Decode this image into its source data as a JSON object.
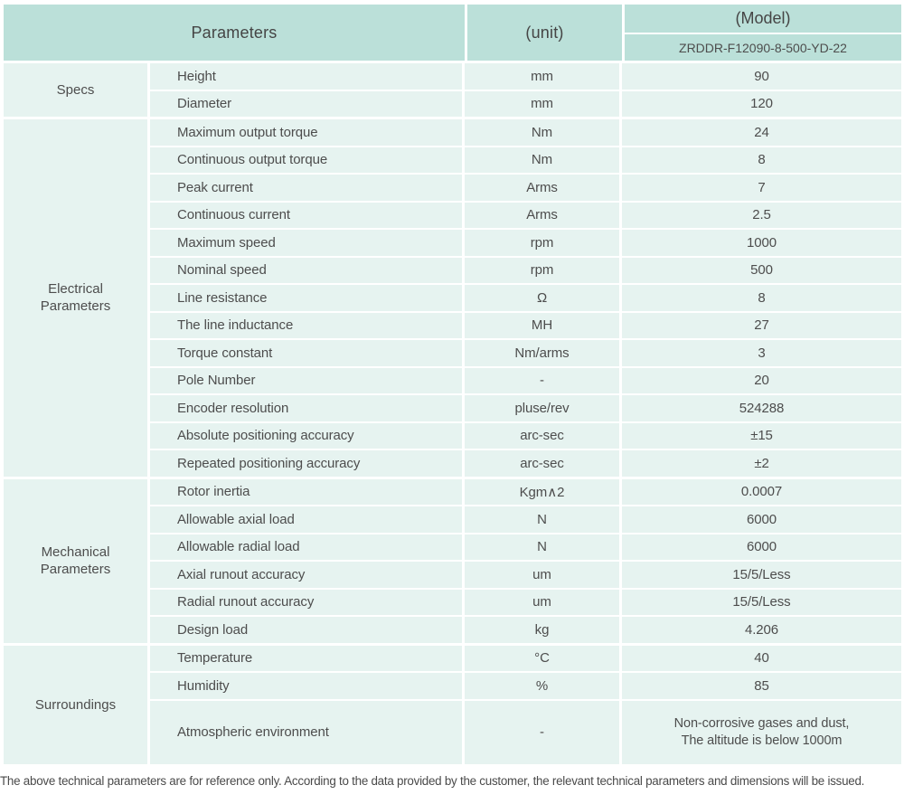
{
  "header": {
    "parameters_label": "Parameters",
    "unit_label": "(unit)",
    "model_label": "(Model)",
    "model_value": "ZRDDR-F12090-8-500-YD-22"
  },
  "sections": [
    {
      "label": "Specs",
      "rows": [
        {
          "parameter": "Height",
          "unit": "mm",
          "value": "90"
        },
        {
          "parameter": "Diameter",
          "unit": "mm",
          "value": "120"
        }
      ]
    },
    {
      "label": "Electrical Parameters",
      "rows": [
        {
          "parameter": "Maximum output torque",
          "unit": "Nm",
          "value": "24"
        },
        {
          "parameter": "Continuous output torque",
          "unit": "Nm",
          "value": "8"
        },
        {
          "parameter": "Peak current",
          "unit": "Arms",
          "value": "7"
        },
        {
          "parameter": "Continuous current",
          "unit": "Arms",
          "value": "2.5"
        },
        {
          "parameter": "Maximum speed",
          "unit": "rpm",
          "value": "1000"
        },
        {
          "parameter": "Nominal speed",
          "unit": "rpm",
          "value": "500"
        },
        {
          "parameter": "Line resistance",
          "unit": "Ω",
          "value": "8"
        },
        {
          "parameter": "The line inductance",
          "unit": "MH",
          "value": "27"
        },
        {
          "parameter": "Torque constant",
          "unit": "Nm/arms",
          "value": "3"
        },
        {
          "parameter": "Pole Number",
          "unit": "-",
          "value": "20"
        },
        {
          "parameter": "Encoder resolution",
          "unit": "pluse/rev",
          "value": "524288"
        },
        {
          "parameter": "Absolute positioning accuracy",
          "unit": "arc-sec",
          "value": "±15"
        },
        {
          "parameter": "Repeated positioning accuracy",
          "unit": "arc-sec",
          "value": "±2"
        }
      ]
    },
    {
      "label": "Mechanical Parameters",
      "rows": [
        {
          "parameter": "Rotor inertia",
          "unit": "Kgm∧2",
          "value": "0.0007"
        },
        {
          "parameter": "Allowable axial load",
          "unit": "N",
          "value": "6000"
        },
        {
          "parameter": "Allowable radial load",
          "unit": "N",
          "value": "6000"
        },
        {
          "parameter": "Axial runout accuracy",
          "unit": "um",
          "value": "15/5/Less"
        },
        {
          "parameter": "Radial runout accuracy",
          "unit": "um",
          "value": "15/5/Less"
        },
        {
          "parameter": "Design load",
          "unit": "kg",
          "value": "4.206"
        }
      ]
    },
    {
      "label": "Surroundings",
      "rows": [
        {
          "parameter": "Temperature",
          "unit": "°C",
          "value": "40"
        },
        {
          "parameter": "Humidity",
          "unit": "%",
          "value": "85"
        },
        {
          "parameter": "Atmospheric environment",
          "unit": "-",
          "value": "Non-corrosive gases and dust,\nThe altitude is below 1000m",
          "tall": true
        }
      ]
    }
  ],
  "footer": {
    "note": "The above technical parameters are for reference only. According to the data provided by the customer, the relevant technical parameters and dimensions will be issued."
  },
  "colors": {
    "header_bg": "#bbe0d9",
    "cell_bg": "#e6f3f0",
    "text": "#4d4d4d",
    "divider": "#ffffff"
  }
}
